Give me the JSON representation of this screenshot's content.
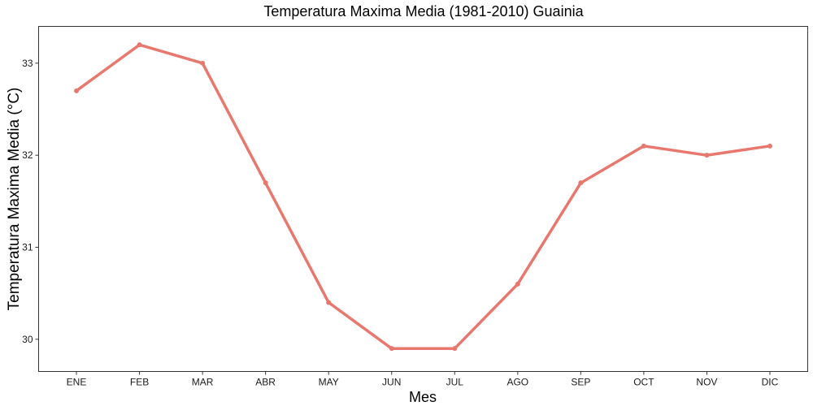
{
  "chart_data": {
    "type": "line",
    "title": "Temperatura Maxima Media (1981-2010)  Guainia",
    "xlabel": "Mes",
    "ylabel": "Temperatura Maxima Media  (°C)",
    "categories": [
      "ENE",
      "FEB",
      "MAR",
      "ABR",
      "MAY",
      "JUN",
      "JUL",
      "AGO",
      "SEP",
      "OCT",
      "NOV",
      "DIC"
    ],
    "values": [
      32.7,
      33.2,
      33.0,
      31.7,
      30.4,
      29.9,
      29.9,
      30.6,
      31.7,
      32.1,
      32.0,
      32.1
    ],
    "ylim": [
      29.65,
      33.4
    ],
    "yticks": [
      "30",
      "31",
      "32",
      "33"
    ],
    "grid": false,
    "legend": "none",
    "color": "#E8776E"
  }
}
